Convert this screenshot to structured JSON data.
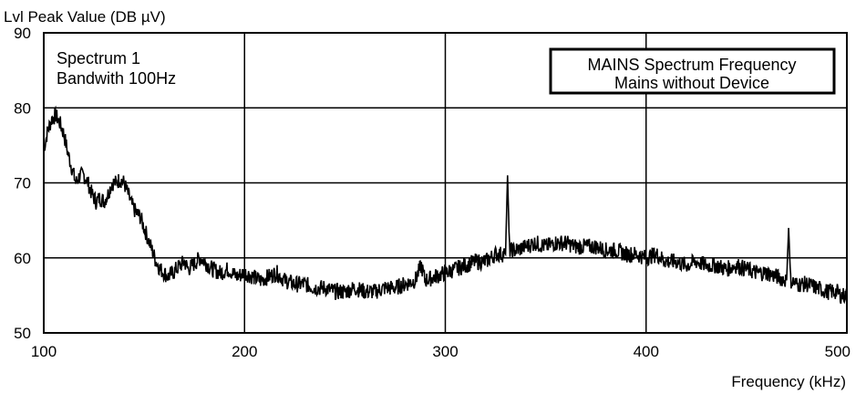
{
  "chart_data": {
    "type": "line",
    "ylabel": "Lvl Peak Value (DB µV)",
    "xlabel": "Frequency (kHz)",
    "xlim": [
      100,
      500
    ],
    "ylim": [
      50,
      90
    ],
    "x_ticks": [
      "100",
      "200",
      "300",
      "400",
      "500"
    ],
    "y_ticks": [
      "90",
      "80",
      "70",
      "60",
      "50"
    ],
    "grid": true,
    "annotation_left": [
      "Spectrum 1",
      "Bandwith 100Hz"
    ],
    "legend_box": [
      "MAINS Spectrum Frequency",
      "Mains without Device"
    ],
    "series": [
      {
        "x": [
          100,
          102,
          104,
          106,
          108,
          110,
          112,
          114,
          116,
          118,
          120,
          122,
          124,
          126,
          128,
          130,
          132,
          134,
          136,
          138,
          140,
          142,
          144,
          146,
          148,
          150,
          152,
          154,
          156,
          158,
          160,
          162,
          164,
          166,
          168,
          170,
          172,
          174,
          176,
          178,
          180,
          184,
          188,
          192,
          196,
          200,
          204,
          208,
          212,
          216,
          220,
          225,
          230,
          235,
          240,
          245,
          250,
          255,
          260,
          265,
          270,
          275,
          280,
          285,
          288,
          290,
          295,
          300,
          305,
          310,
          315,
          320,
          325,
          330,
          331,
          332,
          335,
          340,
          345,
          350,
          355,
          360,
          365,
          370,
          375,
          380,
          385,
          390,
          395,
          400,
          405,
          410,
          415,
          420,
          425,
          430,
          435,
          440,
          445,
          450,
          455,
          460,
          465,
          470,
          471,
          472,
          475,
          480,
          485,
          490,
          495,
          497,
          500
        ],
        "y": [
          74.5,
          77,
          78.5,
          79,
          78,
          76.5,
          74,
          72,
          70,
          71,
          71,
          70,
          68.5,
          67.5,
          68,
          67.5,
          68.5,
          70,
          70,
          70.5,
          70,
          68.5,
          67,
          66,
          65.5,
          64,
          62.5,
          61,
          59.5,
          58.5,
          58,
          57.5,
          58,
          58.5,
          59,
          59.5,
          58.5,
          59,
          59.5,
          60,
          59.5,
          58.5,
          58,
          58.5,
          57.5,
          58,
          57.5,
          57,
          57.5,
          58,
          57,
          56.5,
          56.5,
          56,
          56,
          55.5,
          55.5,
          56,
          55.5,
          55.5,
          56,
          56,
          56.5,
          57,
          59,
          57,
          57.5,
          58,
          58.5,
          59,
          59.5,
          59.5,
          60.5,
          60.5,
          71,
          61,
          61,
          61.5,
          62,
          61.5,
          62,
          62,
          61.5,
          61.5,
          61.5,
          61,
          61,
          60.5,
          60.5,
          60,
          60.5,
          59.5,
          59.5,
          59,
          59.5,
          59,
          59,
          58.5,
          59,
          58.5,
          58,
          58,
          57.5,
          57,
          64,
          57,
          56.5,
          56.5,
          56,
          55.5,
          55.5,
          55,
          55
        ]
      }
    ]
  }
}
